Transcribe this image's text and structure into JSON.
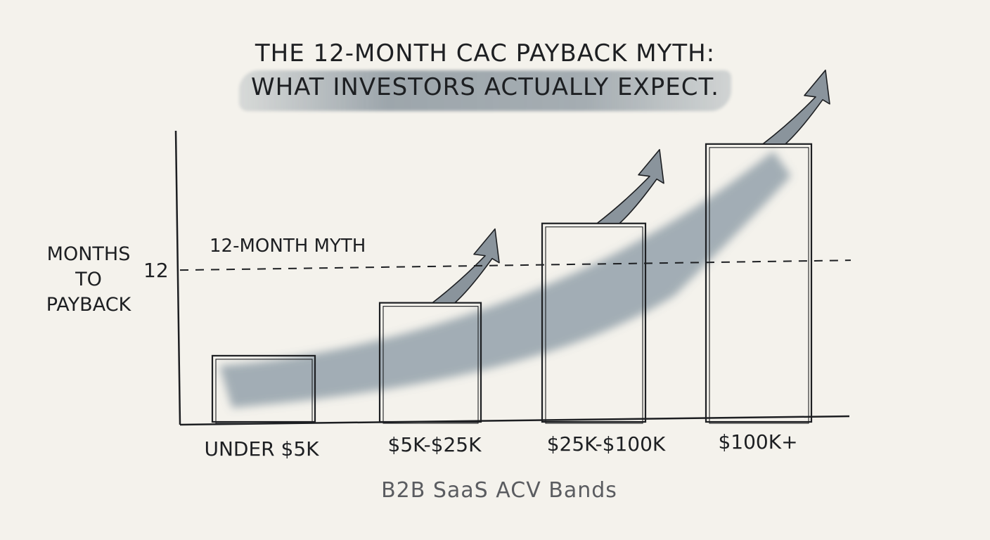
{
  "chart_data": {
    "type": "bar",
    "title_lines": [
      "THE 12-MONTH CAC PAYBACK MYTH:",
      "WHAT INVESTORS ACTUALLY EXPECT."
    ],
    "xlabel": "B2B SaaS ACV Bands",
    "ylabel": "MONTHS\nTO\nPAYBACK",
    "categories": [
      "UNDER $5K",
      "$5K-$25K",
      "$25K-$100K",
      "$100K+"
    ],
    "values": [
      5,
      9,
      15,
      21
    ],
    "ylim": [
      0,
      22
    ],
    "yticks": [
      {
        "value": 12,
        "label": "12"
      }
    ],
    "reference_line": {
      "value": 12,
      "label": "12-MONTH MYTH",
      "style": "dashed"
    },
    "trend_arrows": true,
    "grid": false,
    "legend": "none"
  },
  "colors": {
    "ink": "#1d1f22",
    "wash": "#5f7486",
    "arrow": "#8a949c",
    "background": "#f4f2ec"
  }
}
